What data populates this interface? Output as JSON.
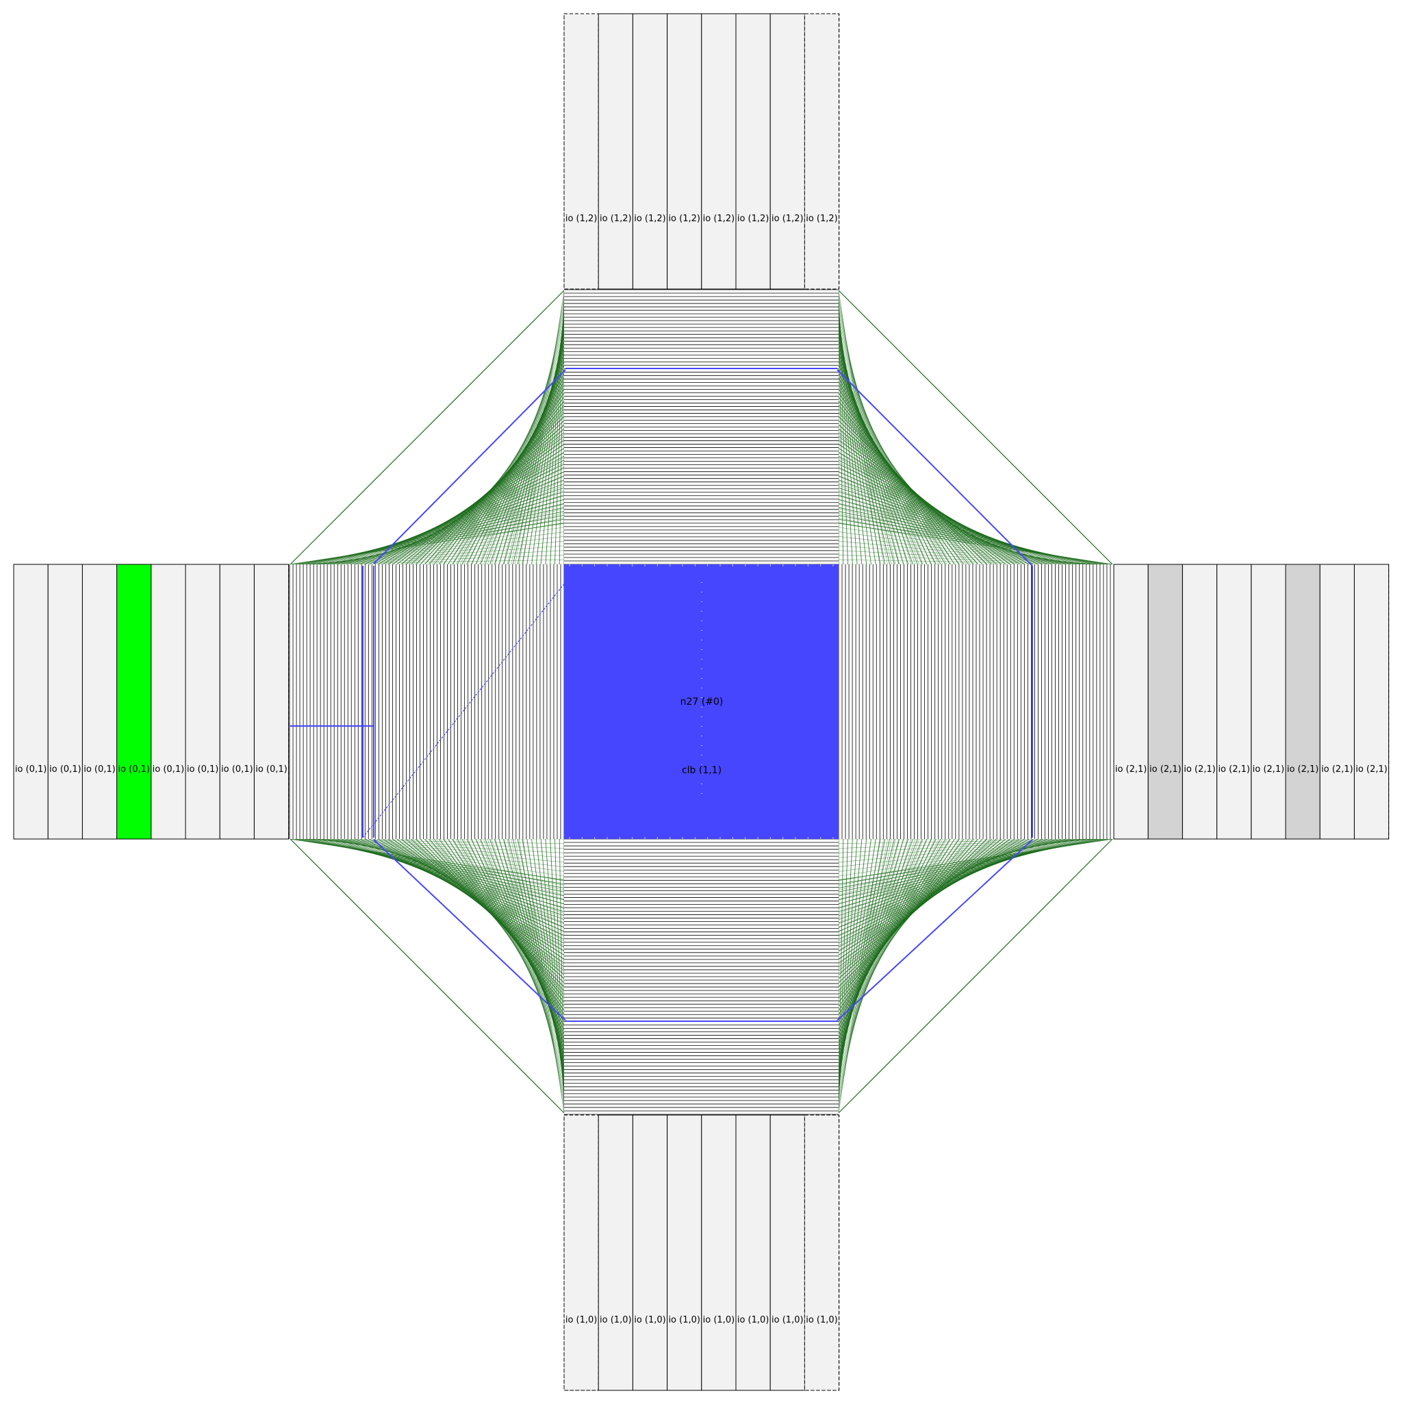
{
  "colors": {
    "io_fill": "#f2f2f2",
    "io_fill_used": "#d3d3d3",
    "io_fill_selected": "#00ff00",
    "clb_fill": "#4646ff",
    "track": "#000000",
    "switch": "#1b6b1b",
    "net": "#4646ff"
  },
  "blocks": {
    "clb": {
      "name": "clb (1,1)",
      "net_label": "n27 (#0)"
    },
    "io_top": {
      "labels": [
        "io (1,2)",
        "io (1,2)",
        "io (1,2)",
        "io (1,2)",
        "io (1,2)",
        "io (1,2)",
        "io (1,2)",
        "io (1,2)"
      ],
      "state": [
        "free",
        "free",
        "free",
        "free",
        "free",
        "free",
        "free",
        "free"
      ]
    },
    "io_bottom": {
      "labels": [
        "io (1,0)",
        "io (1,0)",
        "io (1,0)",
        "io (1,0)",
        "io (1,0)",
        "io (1,0)",
        "io (1,0)",
        "io (1,0)"
      ],
      "state": [
        "free",
        "free",
        "free",
        "free",
        "free",
        "free",
        "free",
        "free"
      ]
    },
    "io_left": {
      "labels": [
        "io (0,1)",
        "io (0,1)",
        "io (0,1)",
        "io (0,1)",
        "io (0,1)",
        "io (0,1)",
        "io (0,1)",
        "io (0,1)"
      ],
      "state": [
        "free",
        "free",
        "free",
        "selected",
        "free",
        "free",
        "free",
        "free"
      ]
    },
    "io_right": {
      "labels": [
        "io (2,1)",
        "io (2,1)",
        "io (2,1)",
        "io (2,1)",
        "io (2,1)",
        "io (2,1)",
        "io (2,1)",
        "io (2,1)"
      ],
      "state": [
        "free",
        "used",
        "free",
        "free",
        "free",
        "used",
        "free",
        "free"
      ]
    }
  },
  "routing": {
    "channel_tracks": 80,
    "clb_pins": 22
  }
}
